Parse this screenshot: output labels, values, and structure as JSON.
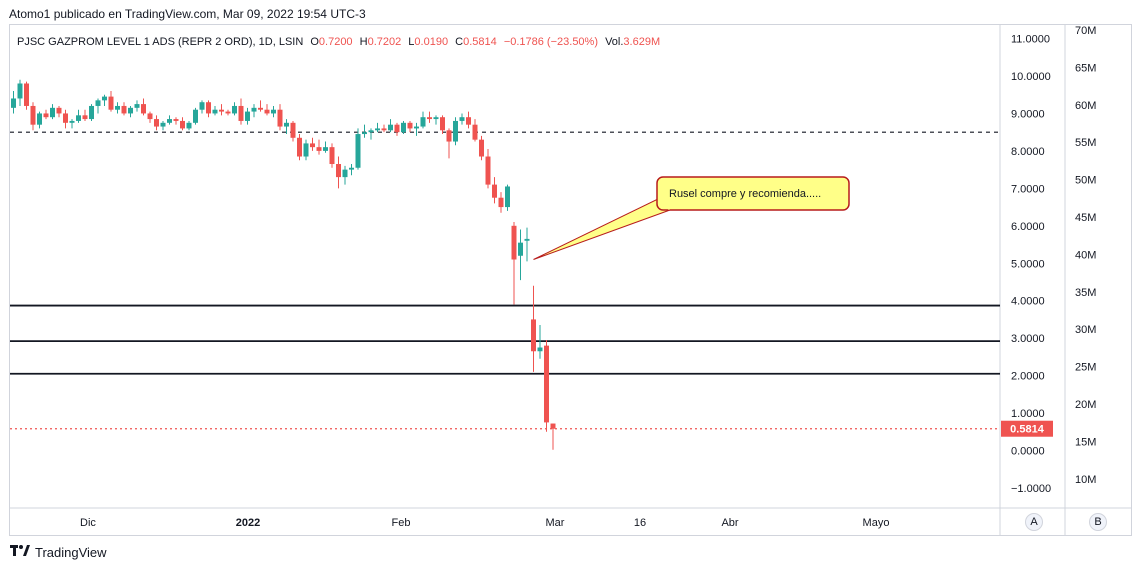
{
  "header": {
    "publisher_line": "Atomo1 publicado en TradingView.com, Mar 09, 2022 19:54 UTC-3"
  },
  "legend": {
    "symbol": "PJSC GAZPROM LEVEL 1 ADS (REPR 2 ORD), 1D, LSIN",
    "o_label": "O",
    "o_value": "0.7200",
    "h_label": "H",
    "h_value": "0.7202",
    "l_label": "L",
    "l_value": "0.0190",
    "c_label": "C",
    "c_value": "0.5814",
    "change": "−0.1786 (−23.50%)",
    "vol_label": "Vol.",
    "vol_value": "3.629M"
  },
  "annotation": {
    "text": "Rusel compre y recomienda....."
  },
  "footer": {
    "brand": "TradingView",
    "logo_icon": "tradingview-logo-icon"
  },
  "scale_buttons": {
    "auto": "A",
    "log": "B"
  },
  "colors": {
    "up": "#26a69a",
    "down": "#ef5350",
    "grid": "#d1d4dc",
    "callout_fill": "#ffff88",
    "callout_border": "#b71c1c"
  },
  "chart_data": {
    "type": "candlestick",
    "price_axis_labels": [
      "11.0000",
      "10.0000",
      "9.0000",
      "8.0000",
      "7.0000",
      "6.0000",
      "5.0000",
      "4.0000",
      "3.0000",
      "2.0000",
      "1.0000",
      "0.0000",
      "−1.0000"
    ],
    "volume_axis_labels": [
      "70M",
      "65M",
      "60M",
      "55M",
      "50M",
      "45M",
      "40M",
      "35M",
      "30M",
      "25M",
      "20M",
      "15M",
      "10M"
    ],
    "x_axis_labels": [
      "Dic",
      "2022",
      "Feb",
      "Mar",
      "16",
      "Abr",
      "Mayo"
    ],
    "ylim": [
      -1.0,
      11.0
    ],
    "last_price_label": "0.5814",
    "last_price": 0.5814,
    "dashed_level": 8.5,
    "horizontal_lines": [
      3.87,
      2.92,
      2.05
    ],
    "candles": [
      [
        9.15,
        9.6,
        9.0,
        9.4
      ],
      [
        9.4,
        9.9,
        9.2,
        9.8
      ],
      [
        9.8,
        9.85,
        9.1,
        9.2
      ],
      [
        9.2,
        9.3,
        8.55,
        8.7
      ],
      [
        8.7,
        9.05,
        8.6,
        9.0
      ],
      [
        9.0,
        9.1,
        8.85,
        8.9
      ],
      [
        8.9,
        9.25,
        8.85,
        9.15
      ],
      [
        9.15,
        9.2,
        8.9,
        9.0
      ],
      [
        9.0,
        9.1,
        8.6,
        8.75
      ],
      [
        8.75,
        8.85,
        8.6,
        8.8
      ],
      [
        8.8,
        9.1,
        8.75,
        8.95
      ],
      [
        8.95,
        9.1,
        8.8,
        8.85
      ],
      [
        8.85,
        9.25,
        8.8,
        9.2
      ],
      [
        9.2,
        9.4,
        9.0,
        9.35
      ],
      [
        9.35,
        9.5,
        9.2,
        9.45
      ],
      [
        9.45,
        9.6,
        9.05,
        9.1
      ],
      [
        9.1,
        9.3,
        9.0,
        9.2
      ],
      [
        9.2,
        9.3,
        8.95,
        9.0
      ],
      [
        9.0,
        9.2,
        8.9,
        9.15
      ],
      [
        9.15,
        9.35,
        9.05,
        9.25
      ],
      [
        9.25,
        9.4,
        8.95,
        9.0
      ],
      [
        9.0,
        9.05,
        8.75,
        8.85
      ],
      [
        8.85,
        8.95,
        8.55,
        8.65
      ],
      [
        8.65,
        8.8,
        8.55,
        8.75
      ],
      [
        8.75,
        8.95,
        8.7,
        8.85
      ],
      [
        8.85,
        8.9,
        8.7,
        8.8
      ],
      [
        8.8,
        8.9,
        8.55,
        8.6
      ],
      [
        8.6,
        8.8,
        8.55,
        8.75
      ],
      [
        8.75,
        9.15,
        8.7,
        9.1
      ],
      [
        9.1,
        9.35,
        9.0,
        9.3
      ],
      [
        9.3,
        9.35,
        8.9,
        9.0
      ],
      [
        9.0,
        9.2,
        8.95,
        9.1
      ],
      [
        9.1,
        9.25,
        8.95,
        9.05
      ],
      [
        9.05,
        9.1,
        8.95,
        9.0
      ],
      [
        9.0,
        9.3,
        8.95,
        9.2
      ],
      [
        9.2,
        9.4,
        8.7,
        8.8
      ],
      [
        8.8,
        9.15,
        8.7,
        9.05
      ],
      [
        9.05,
        9.25,
        8.9,
        9.15
      ],
      [
        9.15,
        9.35,
        9.05,
        9.1
      ],
      [
        9.1,
        9.25,
        8.95,
        9.0
      ],
      [
        9.0,
        9.2,
        8.9,
        9.1
      ],
      [
        9.1,
        9.25,
        8.55,
        8.65
      ],
      [
        8.65,
        8.85,
        8.45,
        8.75
      ],
      [
        8.75,
        8.8,
        8.25,
        8.35
      ],
      [
        8.35,
        8.45,
        7.75,
        7.85
      ],
      [
        7.85,
        8.3,
        7.75,
        8.2
      ],
      [
        8.2,
        8.35,
        8.0,
        8.1
      ],
      [
        8.1,
        8.3,
        7.9,
        8.0
      ],
      [
        8.0,
        8.25,
        7.95,
        8.1
      ],
      [
        8.1,
        8.2,
        7.55,
        7.65
      ],
      [
        7.65,
        7.85,
        7.0,
        7.3
      ],
      [
        7.3,
        7.6,
        7.1,
        7.5
      ],
      [
        7.5,
        7.65,
        7.35,
        7.55
      ],
      [
        7.55,
        8.6,
        7.5,
        8.45
      ],
      [
        8.45,
        8.7,
        8.35,
        8.5
      ],
      [
        8.5,
        8.6,
        8.3,
        8.55
      ],
      [
        8.55,
        8.75,
        8.5,
        8.6
      ],
      [
        8.6,
        8.7,
        8.5,
        8.55
      ],
      [
        8.55,
        8.85,
        8.5,
        8.7
      ],
      [
        8.7,
        8.75,
        8.4,
        8.5
      ],
      [
        8.5,
        8.8,
        8.45,
        8.75
      ],
      [
        8.75,
        8.8,
        8.5,
        8.6
      ],
      [
        8.6,
        8.75,
        8.4,
        8.65
      ],
      [
        8.65,
        9.05,
        8.6,
        8.9
      ],
      [
        8.9,
        9.05,
        8.75,
        8.85
      ],
      [
        8.85,
        8.95,
        8.7,
        8.9
      ],
      [
        8.9,
        8.95,
        8.45,
        8.55
      ],
      [
        8.55,
        8.6,
        7.8,
        8.25
      ],
      [
        8.25,
        8.9,
        8.15,
        8.8
      ],
      [
        8.8,
        9.0,
        8.7,
        8.9
      ],
      [
        8.9,
        9.05,
        8.6,
        8.7
      ],
      [
        8.7,
        8.85,
        8.25,
        8.3
      ],
      [
        8.3,
        8.4,
        7.75,
        7.85
      ],
      [
        7.85,
        8.05,
        7.0,
        7.1
      ],
      [
        7.1,
        7.3,
        6.6,
        6.75
      ],
      [
        6.75,
        6.9,
        6.35,
        6.5
      ],
      [
        6.5,
        7.1,
        6.4,
        7.05
      ],
      [
        6.0,
        6.1,
        3.9,
        5.1
      ],
      [
        5.2,
        5.9,
        4.55,
        5.55
      ],
      [
        5.6,
        5.95,
        5.05,
        5.65
      ],
      [
        3.5,
        4.4,
        2.1,
        2.65
      ],
      [
        2.65,
        3.35,
        2.45,
        2.75
      ],
      [
        2.8,
        2.95,
        0.5,
        0.75
      ],
      [
        0.72,
        0.7202,
        0.019,
        0.5814
      ]
    ]
  }
}
